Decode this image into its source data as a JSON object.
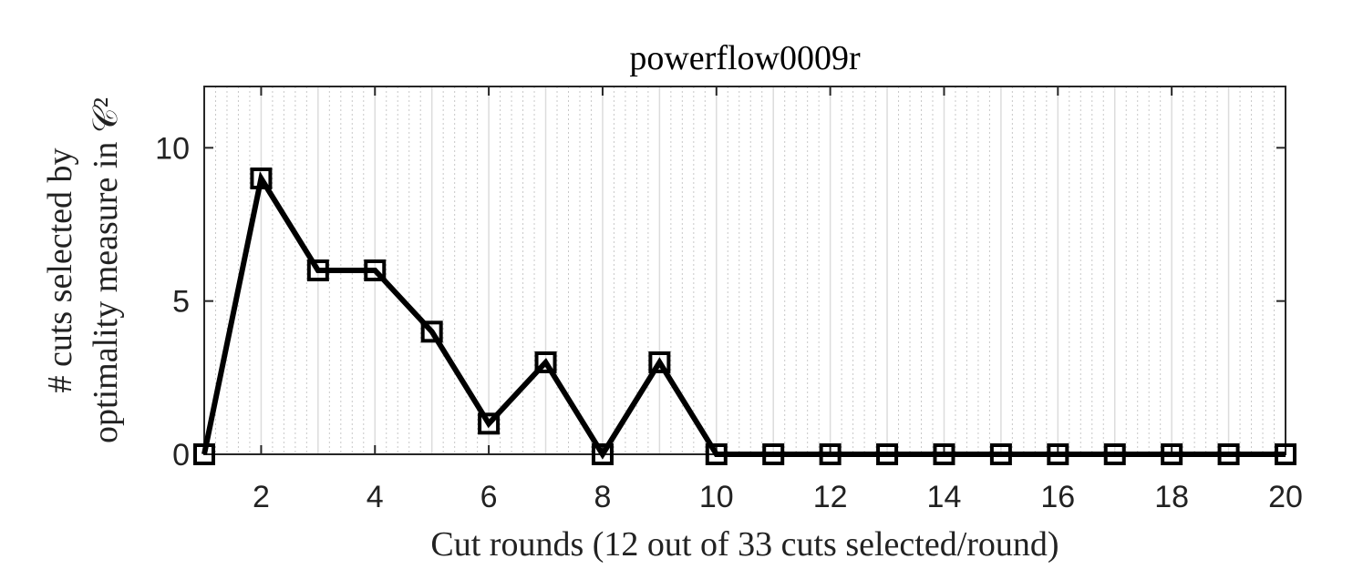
{
  "chart_data": {
    "type": "line",
    "title": "powerflow0009r",
    "xlabel": "Cut rounds (12 out of 33 cuts selected/round)",
    "ylabel_line1": "# cuts selected by",
    "ylabel_line2": "optimality measure in 𝒞²",
    "xlim": [
      1,
      20
    ],
    "ylim": [
      0,
      12
    ],
    "x_ticks": [
      2,
      4,
      6,
      8,
      10,
      12,
      14,
      16,
      18,
      20
    ],
    "y_ticks": [
      0,
      5,
      10
    ],
    "grid": true,
    "minor_grid": true,
    "marker": "square",
    "line_color": "#000000",
    "x": [
      1,
      2,
      3,
      4,
      5,
      6,
      7,
      8,
      9,
      10,
      11,
      12,
      13,
      14,
      15,
      16,
      17,
      18,
      19,
      20
    ],
    "values": [
      0,
      9,
      6,
      6,
      4,
      1,
      3,
      0,
      3,
      0,
      0,
      0,
      0,
      0,
      0,
      0,
      0,
      0,
      0,
      0
    ]
  }
}
